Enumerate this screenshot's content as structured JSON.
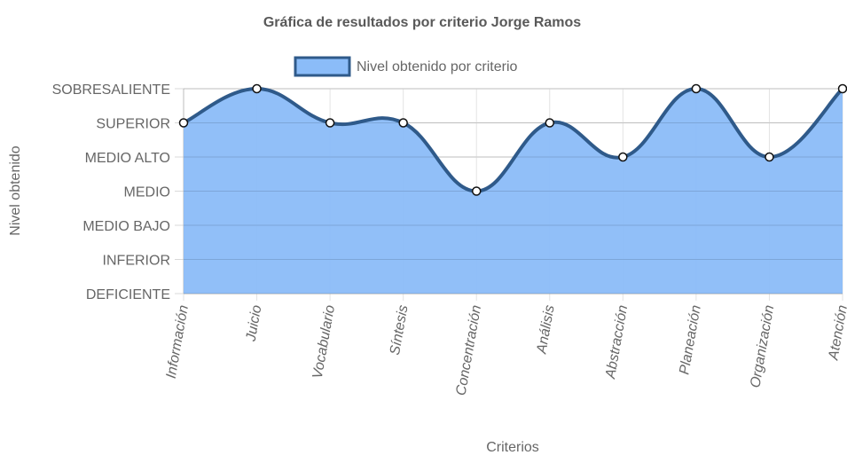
{
  "chart_data": {
    "type": "area",
    "title": "Gráfica de resultados por criterio Jorge Ramos",
    "xlabel": "Criterios",
    "ylabel": "Nivel obtenido",
    "categories": [
      "Información",
      "Juicio",
      "Vocabulario",
      "Síntesis",
      "Concentración",
      "Análisis",
      "Abstracción",
      "Planeación",
      "Organización",
      "Atención"
    ],
    "y_levels": [
      "DEFICIENTE",
      "INFERIOR",
      "MEDIO BAJO",
      "MEDIO",
      "MEDIO ALTO",
      "SUPERIOR",
      "SOBRESALIENTE"
    ],
    "ylim": [
      0,
      6
    ],
    "grid": true,
    "legend_position": "top",
    "series": [
      {
        "name": "Nivel obtenido por criterio",
        "values": [
          5,
          6,
          5,
          5,
          3,
          5,
          4,
          6,
          4,
          6
        ],
        "value_labels": [
          "SUPERIOR",
          "SOBRESALIENTE",
          "SUPERIOR",
          "SUPERIOR",
          "MEDIO",
          "SUPERIOR",
          "MEDIO ALTO",
          "SOBRESALIENTE",
          "MEDIO ALTO",
          "SOBRESALIENTE"
        ],
        "fill_color": "#8bbcf8",
        "line_color": "#2f5a8a"
      }
    ]
  }
}
